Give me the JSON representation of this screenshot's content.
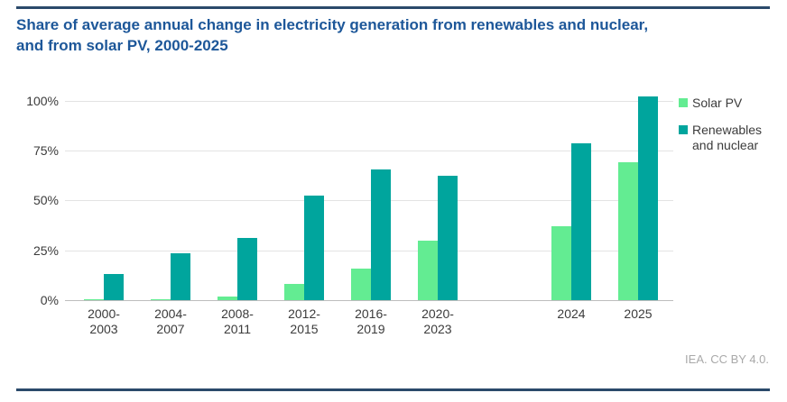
{
  "header": {
    "title": "Share of average annual change in electricity generation from renewables and nuclear,\nand from solar PV, 2000-2025"
  },
  "footer": {
    "attribution": "IEA. CC BY 4.0."
  },
  "colors": {
    "accent_navy": "#2b4a6b",
    "title_blue": "#1d5799",
    "solar_pv_green": "#63ec92",
    "renewables_teal": "#00a59d",
    "gridline_gray": "#e3e3e3",
    "axis_text_gray": "#3b3b3b",
    "attribution_gray": "#a9a9a9"
  },
  "chart_data": {
    "type": "bar",
    "title": "Share of average annual change in electricity generation from renewables and nuclear, and from solar PV, 2000-2025",
    "categories": [
      "2000-\n2003",
      "2004-\n2007",
      "2008-\n2011",
      "2012-\n2015",
      "2016-\n2019",
      "2020-\n2023",
      "",
      "2024",
      "2025"
    ],
    "series": [
      {
        "name": "Solar PV",
        "color": "#63ec92",
        "values": [
          0.6,
          0.3,
          2,
          8,
          16,
          30,
          null,
          37,
          69
        ]
      },
      {
        "name": "Renewables and nuclear",
        "color": "#00a59d",
        "values": [
          13,
          23.5,
          31,
          52.5,
          65.5,
          62.5,
          null,
          78.5,
          102
        ]
      }
    ],
    "xlabel": "",
    "ylabel": "",
    "yticks": [
      0,
      25,
      50,
      75,
      100
    ],
    "ytick_labels": [
      "0%",
      "25%",
      "50%",
      "75%",
      "100%"
    ],
    "ylim": [
      0,
      105
    ],
    "grid": true,
    "legend_position": "right"
  }
}
